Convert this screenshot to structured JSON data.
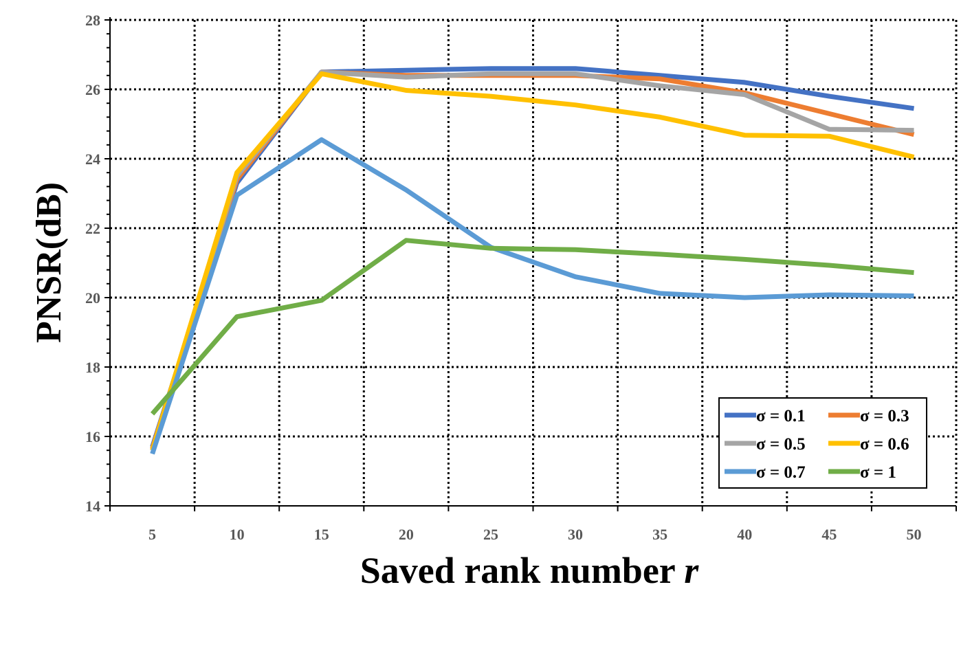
{
  "chart_data": {
    "type": "line",
    "title": "",
    "xlabel": "Saved rank number ",
    "xlabel_var": "r",
    "ylabel": "PNSR(dB)",
    "x": [
      5,
      10,
      15,
      20,
      25,
      30,
      35,
      40,
      45,
      50
    ],
    "xlim": [
      2.5,
      52.5
    ],
    "ylim": [
      14,
      28
    ],
    "yticks": [
      14,
      16,
      18,
      20,
      22,
      24,
      26,
      28
    ],
    "grid": true,
    "legend_position": "bottom-right",
    "series": [
      {
        "name": "σ = 0.1",
        "color": "#4472C4",
        "values": [
          15.7,
          23.3,
          26.5,
          26.55,
          26.6,
          26.6,
          26.4,
          26.2,
          25.8,
          25.45
        ]
      },
      {
        "name": "σ = 0.3",
        "color": "#ED7D31",
        "values": [
          15.65,
          23.4,
          26.5,
          26.4,
          26.4,
          26.4,
          26.3,
          25.9,
          25.3,
          24.7
        ]
      },
      {
        "name": "σ = 0.5",
        "color": "#A5A5A5",
        "values": [
          15.6,
          23.5,
          26.5,
          26.35,
          26.45,
          26.45,
          26.1,
          25.85,
          24.85,
          24.82
        ]
      },
      {
        "name": "σ = 0.6",
        "color": "#FFC000",
        "values": [
          15.6,
          23.6,
          26.45,
          25.97,
          25.8,
          25.55,
          25.2,
          24.68,
          24.65,
          24.05
        ]
      },
      {
        "name": "σ = 0.7",
        "color": "#5B9BD5",
        "values": [
          15.5,
          22.95,
          24.55,
          23.1,
          21.45,
          20.6,
          20.12,
          20.0,
          20.08,
          20.05
        ]
      },
      {
        "name": "σ = 1",
        "color": "#70AD47",
        "values": [
          16.65,
          19.45,
          19.92,
          21.65,
          21.42,
          21.38,
          21.25,
          21.1,
          20.93,
          20.72
        ]
      }
    ]
  }
}
